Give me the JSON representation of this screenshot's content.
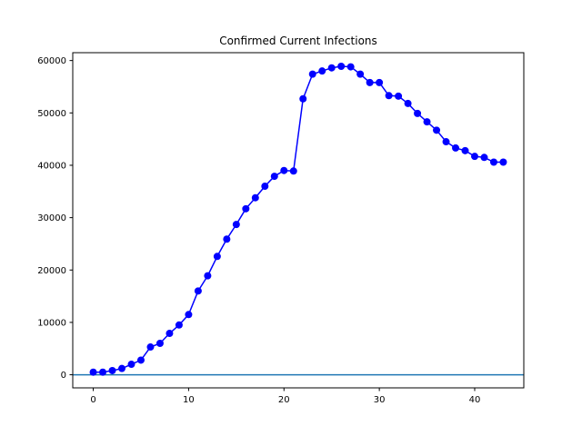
{
  "chart_data": {
    "type": "line",
    "title": "Confirmed Current Infections",
    "xlabel": "",
    "ylabel": "",
    "xlim": [
      -2.15,
      45.15
    ],
    "ylim": [
      -2500,
      61500
    ],
    "xticks": [
      0,
      10,
      20,
      30,
      40
    ],
    "yticks": [
      0,
      10000,
      20000,
      30000,
      40000,
      50000,
      60000
    ],
    "grid": false,
    "legend": "none",
    "series": [
      {
        "color": "#0000ff",
        "marker": "circle",
        "x": [
          0,
          1,
          2,
          3,
          4,
          5,
          6,
          7,
          8,
          9,
          10,
          11,
          12,
          13,
          14,
          15,
          16,
          17,
          18,
          19,
          20,
          21,
          22,
          23,
          24,
          25,
          26,
          27,
          28,
          29,
          30,
          31,
          32,
          33,
          34,
          35,
          36,
          37,
          38,
          39,
          40,
          41,
          42,
          43
        ],
        "values": [
          500,
          500,
          800,
          1200,
          2000,
          2800,
          5300,
          6000,
          7900,
          9500,
          11500,
          16000,
          18900,
          22600,
          25900,
          28700,
          31700,
          33800,
          36000,
          37900,
          39000,
          38900,
          52700,
          57400,
          58000,
          58600,
          58900,
          58800,
          57400,
          55800,
          55800,
          53300,
          53200,
          51800,
          49900,
          48300,
          46700,
          44500,
          43300,
          42800,
          41700,
          41500,
          40600,
          40600
        ]
      }
    ],
    "baseline": {
      "y": 0,
      "color": "#1f77b4"
    }
  }
}
